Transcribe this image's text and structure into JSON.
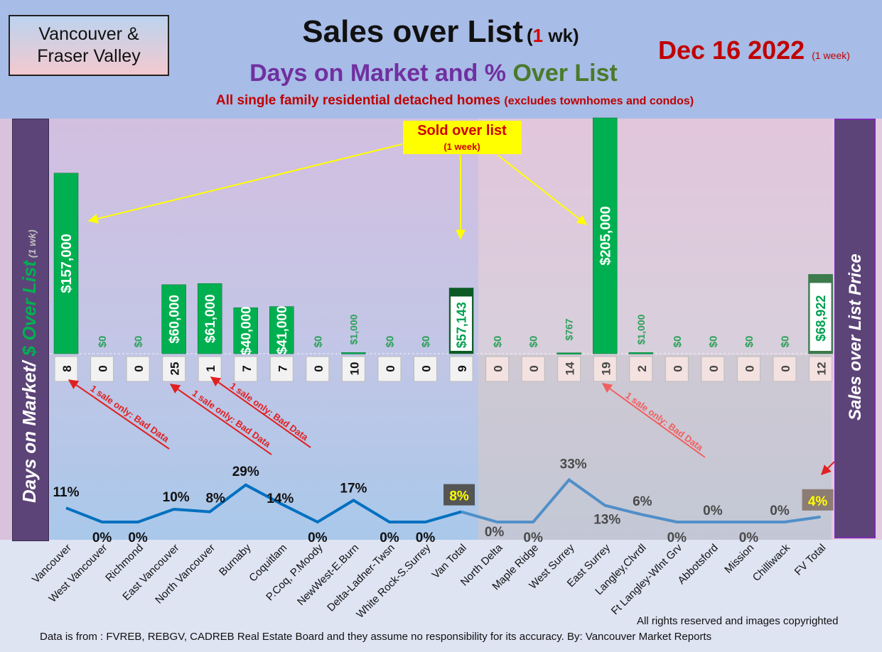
{
  "region": {
    "line1": "Vancouver &",
    "line2": "Fraser Valley"
  },
  "title": {
    "main": "Sales over List",
    "paren_open": "(",
    "paren_num": "1",
    "paren_rest": " wk)"
  },
  "subtitle": {
    "part1": "Days on Market and % ",
    "part2": "Over List"
  },
  "note": {
    "main": "All single family residential detached homes ",
    "small": "(excludes townhomes and condos)"
  },
  "date": {
    "main": "Dec 16  2022",
    "small": "(1 week)"
  },
  "left_axis": {
    "part1": "Days on Market/ ",
    "part2": "$ Over List",
    "part3": " (1 wk)"
  },
  "right_axis": {
    "label": "Sales over List Price"
  },
  "sold_callout": {
    "line1": "Sold over list",
    "line2": "(1 week)"
  },
  "pct_box": {
    "label": "% Over List"
  },
  "bad_data_label": "1 sale only: Bad Data",
  "footer": {
    "rights": "All rights reserved and  images copyrighted",
    "source": "Data is from : FVREB, REBGV, CADREB Real Estate Board and they assume no responsibility for its accuracy. By: Vancouver Market Reports"
  },
  "colors": {
    "bar_green": "#00b050",
    "bar_dark_green": "#1e6b35",
    "line_van": "#0070c0",
    "line_fv": "#4f8fc8",
    "pct_text": "#222222",
    "pct_highlight": "#ffff00"
  },
  "chart_data": {
    "type": "bar",
    "categories": [
      "Vancouver",
      "West Vancouver",
      "Richmond",
      "East Vancouver",
      "North Vancouver",
      "Burnaby",
      "Coquitlam",
      "P.Coq, P.Moody",
      "NewWest-E.Burn",
      "Delta-Ladner-Twsn",
      "White Rock-S.Surrey",
      "Van Total",
      "North Delta",
      "Maple Ridge",
      "West Surrey",
      "East Surrey",
      "Langley,Clvrdl",
      "Ft Langley-Wlnt Grv",
      "Abbotsford",
      "Mission",
      "Chilliwack",
      "FV Total"
    ],
    "series": [
      {
        "name": "$ Over List",
        "values": [
          157000,
          0,
          0,
          60000,
          61000,
          40000,
          41000,
          0,
          1000,
          0,
          0,
          57143,
          0,
          0,
          767,
          205000,
          1000,
          0,
          0,
          0,
          0,
          68922
        ],
        "labels": [
          "$157,000",
          "$0",
          "$0",
          "$60,000",
          "$61,000",
          "$40,000",
          "$41,000",
          "$0",
          "$1,000",
          "$0",
          "$0",
          "$57,143",
          "$0",
          "$0",
          "$767",
          "$205,000",
          "$1,000",
          "$0",
          "$0",
          "$0",
          "$0",
          "$68,922"
        ]
      },
      {
        "name": "Days on Market",
        "values": [
          8,
          0,
          0,
          25,
          1,
          7,
          7,
          0,
          10,
          0,
          0,
          9,
          0,
          0,
          14,
          19,
          2,
          0,
          0,
          0,
          0,
          12
        ]
      },
      {
        "name": "% Over List",
        "values": [
          11,
          0,
          0,
          10,
          8,
          29,
          14,
          0,
          17,
          0,
          0,
          8,
          0,
          0,
          33,
          13,
          6,
          0,
          0,
          0,
          0,
          4
        ],
        "labels": [
          "11%",
          "0%",
          "0%",
          "10%",
          "8%",
          "29%",
          "14%",
          "0%",
          "17%",
          "0%",
          "0%",
          "8%",
          "0%",
          "0%",
          "33%",
          "13%",
          "6%",
          "0%",
          "0%",
          "0%",
          "0%",
          "4%"
        ]
      }
    ],
    "xlabel": "",
    "ylabel": "Days on Market/ $ Over List (1 wk)",
    "bad_data_indices": [
      0,
      3,
      4,
      15
    ],
    "grid": false
  }
}
